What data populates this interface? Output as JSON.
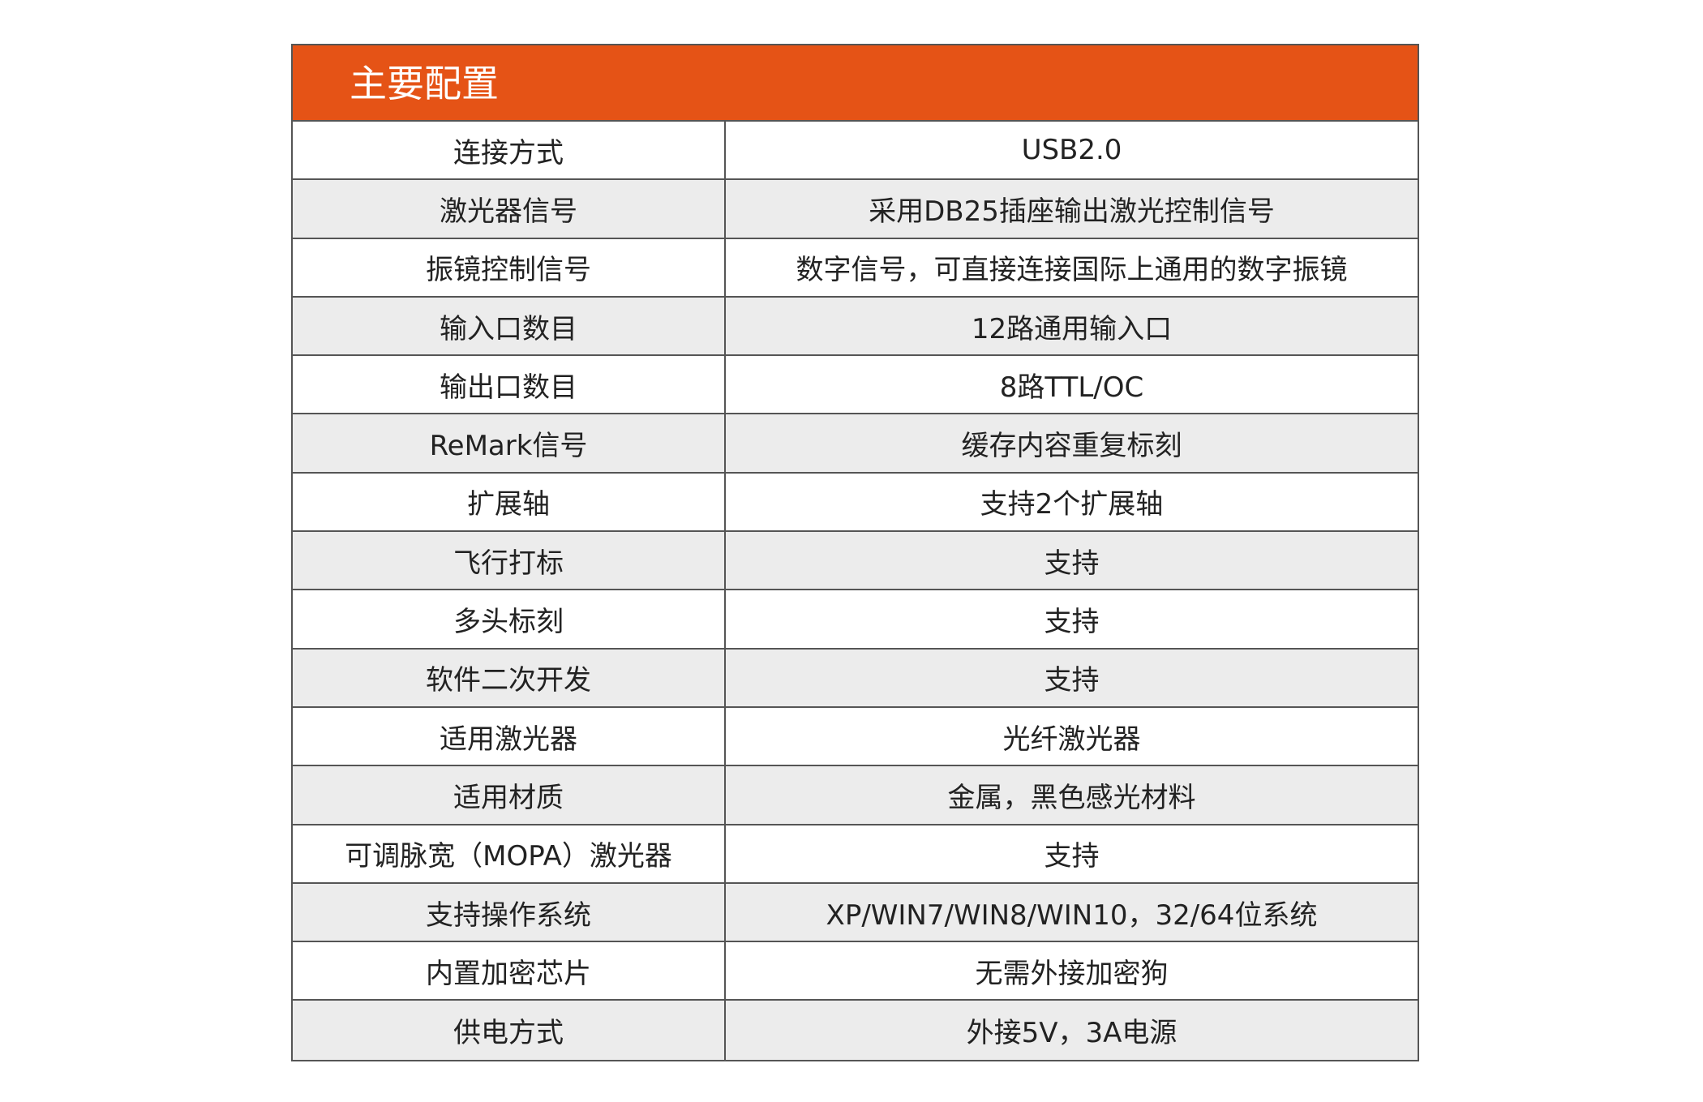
{
  "header": {
    "title": "主要配置"
  },
  "table": {
    "rows": [
      [
        "连接方式",
        "USB2.0"
      ],
      [
        "激光器信号",
        "采用DB25插座输出激光控制信号"
      ],
      [
        "振镜控制信号",
        "数字信号，可直接连接国际上通用的数字振镜"
      ],
      [
        "输入口数目",
        "12路通用输入口"
      ],
      [
        "输出口数目",
        "8路TTL/OC"
      ],
      [
        "ReMark信号",
        "缓存内容重复标刻"
      ],
      [
        "扩展轴",
        "支持2个扩展轴"
      ],
      [
        "飞行打标",
        "支持"
      ],
      [
        "多头标刻",
        "支持"
      ],
      [
        "软件二次开发",
        "支持"
      ],
      [
        "适用激光器",
        "光纤激光器"
      ],
      [
        "适用材质",
        "金属，黑色感光材料"
      ],
      [
        "可调脉宽（MOPA）激光器",
        "支持"
      ],
      [
        "支持操作系统",
        "XP/WIN7/WIN8/WIN10，32/64位系统"
      ],
      [
        "内置加密芯片",
        "无需外接加密狗"
      ],
      [
        "供电方式",
        "外接5V，3A电源"
      ]
    ]
  }
}
